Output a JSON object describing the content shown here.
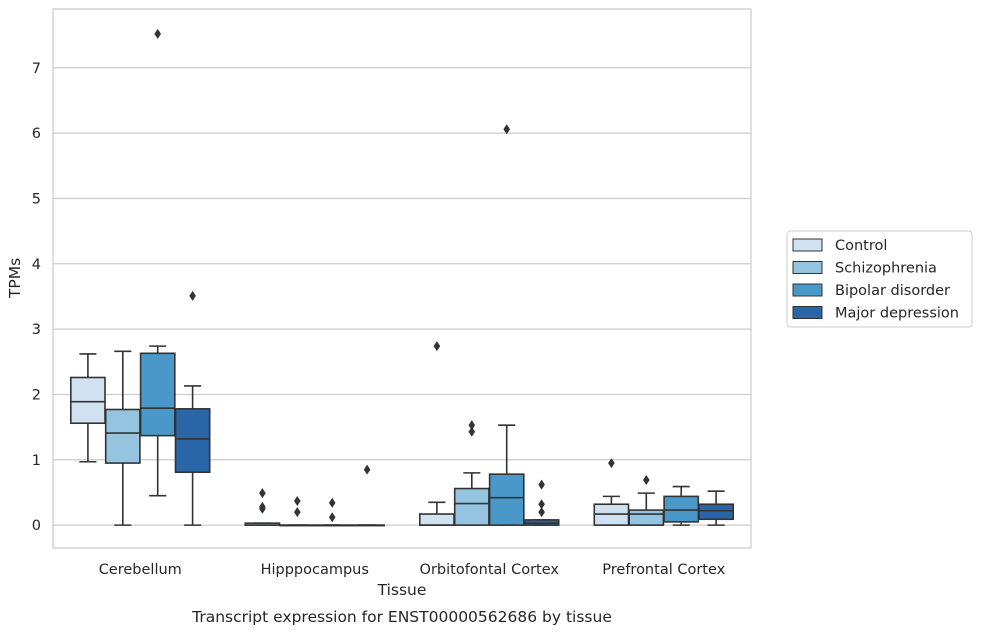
{
  "chart_data": {
    "type": "boxplot",
    "caption": "Transcript expression for ENST00000562686 by tissue",
    "xlabel": "Tissue",
    "ylabel": "TPMs",
    "ylim": [
      -0.35,
      7.9
    ],
    "yticks": [
      0,
      1,
      2,
      3,
      4,
      5,
      6,
      7
    ],
    "grid": "horizontal",
    "legend_position": "right",
    "categories": [
      "Cerebellum",
      "Hipppocampus",
      "Orbitofontal Cortex",
      "Prefrontal Cortex"
    ],
    "series": [
      {
        "name": "Control",
        "color": "#d0e1f2",
        "boxes": [
          {
            "whislo": 0.97,
            "q1": 1.56,
            "med": 1.89,
            "q3": 2.26,
            "whishi": 2.62,
            "fliers": []
          },
          {
            "whislo": 0.0,
            "q1": 0.0,
            "med": 0.0,
            "q3": 0.03,
            "whishi": 0.03,
            "fliers": [
              0.25,
              0.28,
              0.49
            ]
          },
          {
            "whislo": 0.0,
            "q1": 0.0,
            "med": 0.0,
            "q3": 0.17,
            "whishi": 0.35,
            "fliers": [
              2.74
            ]
          },
          {
            "whislo": 0.0,
            "q1": 0.0,
            "med": 0.17,
            "q3": 0.32,
            "whishi": 0.44,
            "fliers": [
              0.95
            ]
          }
        ]
      },
      {
        "name": "Schizophrenia",
        "color": "#94c4df",
        "boxes": [
          {
            "whislo": 0.0,
            "q1": 0.95,
            "med": 1.41,
            "q3": 1.77,
            "whishi": 2.66,
            "fliers": []
          },
          {
            "whislo": 0.0,
            "q1": 0.0,
            "med": 0.0,
            "q3": 0.0,
            "whishi": 0.0,
            "fliers": [
              0.2,
              0.37
            ]
          },
          {
            "whislo": 0.0,
            "q1": 0.0,
            "med": 0.33,
            "q3": 0.56,
            "whishi": 0.8,
            "fliers": [
              1.43,
              1.53
            ]
          },
          {
            "whislo": 0.0,
            "q1": 0.0,
            "med": 0.17,
            "q3": 0.23,
            "whishi": 0.49,
            "fliers": [
              0.69
            ]
          }
        ]
      },
      {
        "name": "Bipolar disorder",
        "color": "#4a98c9",
        "boxes": [
          {
            "whislo": 0.45,
            "q1": 1.37,
            "med": 1.79,
            "q3": 2.63,
            "whishi": 2.74,
            "fliers": [
              7.52
            ]
          },
          {
            "whislo": 0.0,
            "q1": 0.0,
            "med": 0.0,
            "q3": 0.0,
            "whishi": 0.0,
            "fliers": [
              0.12,
              0.34
            ]
          },
          {
            "whislo": 0.0,
            "q1": 0.0,
            "med": 0.42,
            "q3": 0.78,
            "whishi": 1.53,
            "fliers": [
              6.06
            ]
          },
          {
            "whislo": 0.0,
            "q1": 0.05,
            "med": 0.23,
            "q3": 0.44,
            "whishi": 0.59,
            "fliers": []
          }
        ]
      },
      {
        "name": "Major depression",
        "color": "#2966a8",
        "boxes": [
          {
            "whislo": 0.0,
            "q1": 0.81,
            "med": 1.32,
            "q3": 1.78,
            "whishi": 2.13,
            "fliers": [
              3.51
            ]
          },
          {
            "whislo": 0.0,
            "q1": 0.0,
            "med": 0.0,
            "q3": 0.0,
            "whishi": 0.0,
            "fliers": [
              0.85
            ]
          },
          {
            "whislo": 0.0,
            "q1": 0.0,
            "med": 0.03,
            "q3": 0.08,
            "whishi": 0.08,
            "fliers": [
              0.2,
              0.32,
              0.62
            ]
          },
          {
            "whislo": 0.0,
            "q1": 0.09,
            "med": 0.22,
            "q3": 0.32,
            "whishi": 0.52,
            "fliers": []
          }
        ]
      }
    ]
  },
  "colors": {
    "outline": "#333333",
    "grid": "#cccccc",
    "frame": "#cccccc",
    "text": "#262626"
  }
}
